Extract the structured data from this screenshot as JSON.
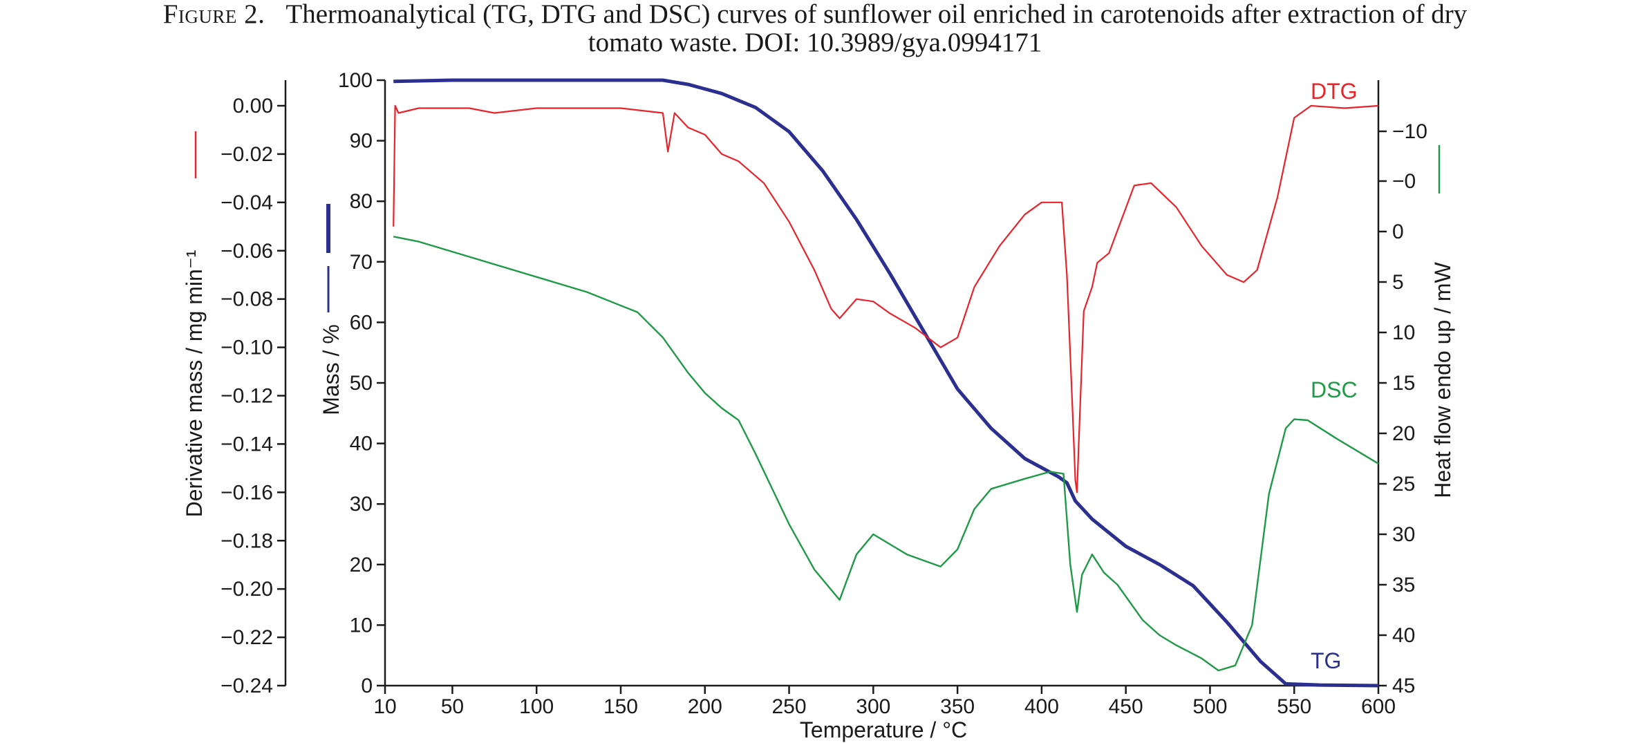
{
  "caption": {
    "figure_label": "Figure 2.",
    "line1": "Thermoanalytical (TG, DTG and DSC) curves of sunflower oil enriched in carotenoids after extraction of dry",
    "line2": "tomato waste. DOI: 10.3989/gya.0994171"
  },
  "colors": {
    "tg": "#2b2f8f",
    "dtg": "#e8232a",
    "dsc": "#1f9a47",
    "axis": "#1a1a1a"
  },
  "chart_data": {
    "type": "line",
    "title": "",
    "xlabel": "Temperature / °C",
    "xlim": [
      10,
      600
    ],
    "x_ticks": [
      "10",
      "50",
      "100",
      "150",
      "200",
      "250",
      "300",
      "350",
      "400",
      "450",
      "500",
      "550",
      "600"
    ],
    "axes": {
      "mass": {
        "label": "Mass / %",
        "ylim": [
          0,
          100
        ],
        "ticks": [
          "100",
          "90",
          "80",
          "70",
          "60",
          "50",
          "40",
          "30",
          "20",
          "10",
          "0"
        ]
      },
      "derivative": {
        "label": "Derivative mass / mg min⁻¹",
        "ylim": [
          -0.24,
          0.01
        ],
        "ticks": [
          "0.00",
          "−0.02",
          "−0.04",
          "−0.06",
          "−0.08",
          "−0.10",
          "−0.12",
          "−0.14",
          "−0.16",
          "−0.18",
          "−0.20",
          "−0.22",
          "−0.24"
        ]
      },
      "heat_flow": {
        "label": "Heat flow endo up / mW",
        "ylim": [
          -15.5,
          45
        ],
        "ticks": [
          "−10",
          "−0",
          "0",
          "5",
          "10",
          "15",
          "20",
          "25",
          "30",
          "35",
          "40",
          "45"
        ]
      }
    },
    "series": [
      {
        "name": "TG",
        "axis": "mass",
        "x": [
          15,
          50,
          100,
          150,
          175,
          190,
          210,
          230,
          250,
          270,
          290,
          310,
          330,
          350,
          370,
          390,
          410,
          415,
          420,
          430,
          450,
          470,
          490,
          510,
          530,
          545,
          565,
          600
        ],
        "y": [
          99.8,
          100,
          100,
          100,
          100,
          99.3,
          97.8,
          95.5,
          91.5,
          85,
          77,
          68,
          58.5,
          49,
          42.5,
          37.5,
          34.5,
          33.5,
          30.5,
          27.5,
          23,
          20,
          16.5,
          10.5,
          4,
          0.3,
          0.1,
          0
        ]
      },
      {
        "name": "DTG",
        "axis": "derivative",
        "x": [
          15,
          16,
          18,
          30,
          60,
          75,
          100,
          150,
          175,
          178,
          182,
          190,
          200,
          210,
          220,
          235,
          250,
          265,
          275,
          280,
          290,
          300,
          310,
          325,
          340,
          350,
          360,
          375,
          390,
          400,
          412,
          415,
          418,
          420,
          421,
          422,
          425,
          430,
          433,
          440,
          455,
          465,
          480,
          495,
          510,
          520,
          528,
          540,
          550,
          560,
          580,
          600
        ],
        "y": [
          -0.05,
          0.0,
          -0.003,
          -0.001,
          -0.001,
          -0.003,
          -0.001,
          -0.001,
          -0.003,
          -0.019,
          -0.003,
          -0.009,
          -0.012,
          -0.02,
          -0.023,
          -0.032,
          -0.048,
          -0.068,
          -0.084,
          -0.088,
          -0.08,
          -0.081,
          -0.086,
          -0.092,
          -0.1,
          -0.096,
          -0.075,
          -0.058,
          -0.045,
          -0.04,
          -0.04,
          -0.07,
          -0.12,
          -0.155,
          -0.16,
          -0.14,
          -0.085,
          -0.075,
          -0.065,
          -0.061,
          -0.033,
          -0.032,
          -0.042,
          -0.058,
          -0.07,
          -0.073,
          -0.068,
          -0.038,
          -0.005,
          0.0,
          -0.001,
          0.0
        ]
      },
      {
        "name": "DSC",
        "axis": "heat_flow",
        "x": [
          15,
          30,
          60,
          100,
          130,
          160,
          175,
          190,
          200,
          210,
          220,
          230,
          250,
          265,
          275,
          280,
          290,
          300,
          310,
          320,
          340,
          350,
          360,
          370,
          390,
          405,
          413,
          417,
          421,
          424,
          430,
          437,
          445,
          460,
          470,
          480,
          495,
          505,
          515,
          525,
          535,
          545,
          550,
          558,
          575,
          600
        ],
        "y": [
          0.5,
          1,
          2.5,
          4.5,
          6,
          8,
          10.5,
          14,
          16,
          17.5,
          18.7,
          22,
          29,
          33.5,
          35.5,
          36.5,
          32,
          30,
          31,
          32,
          33.2,
          31.5,
          27.5,
          25.5,
          24.5,
          23.8,
          24,
          33,
          37.7,
          34,
          32,
          33.8,
          35,
          38.5,
          40,
          41,
          42.3,
          43.5,
          43,
          39,
          26,
          19.5,
          18.6,
          18.7,
          20.5,
          23
        ]
      }
    ],
    "legend": "inline labels at right end of curves"
  }
}
